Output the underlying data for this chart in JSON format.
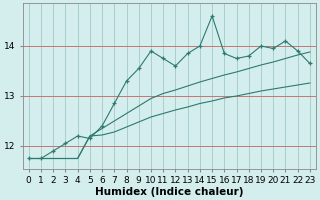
{
  "xlabel": "Humidex (Indice chaleur)",
  "bg_color": "#d4eeee",
  "grid_color": "#aacfcf",
  "line_color": "#2d7a6e",
  "x_values": [
    0,
    1,
    2,
    3,
    4,
    5,
    6,
    7,
    8,
    9,
    10,
    11,
    12,
    13,
    14,
    15,
    16,
    17,
    18,
    19,
    20,
    21,
    22,
    23
  ],
  "y_main": [
    11.75,
    11.75,
    11.9,
    12.05,
    12.2,
    12.15,
    12.4,
    12.85,
    13.3,
    13.55,
    13.9,
    13.75,
    13.6,
    13.85,
    14.0,
    14.6,
    13.85,
    13.75,
    13.8,
    14.0,
    13.95,
    14.1,
    13.9,
    13.65
  ],
  "y_upper": [
    11.75,
    11.75,
    11.75,
    11.75,
    11.75,
    12.2,
    12.35,
    12.5,
    12.65,
    12.8,
    12.95,
    13.05,
    13.12,
    13.2,
    13.28,
    13.35,
    13.42,
    13.48,
    13.55,
    13.62,
    13.68,
    13.75,
    13.82,
    13.88
  ],
  "y_lower": [
    11.75,
    11.75,
    11.75,
    11.75,
    11.75,
    12.2,
    12.22,
    12.28,
    12.38,
    12.48,
    12.58,
    12.65,
    12.72,
    12.78,
    12.85,
    12.9,
    12.96,
    13.0,
    13.05,
    13.1,
    13.14,
    13.18,
    13.22,
    13.26
  ],
  "ylim": [
    11.55,
    14.85
  ],
  "yticks": [
    12,
    13,
    14
  ],
  "xlim": [
    -0.5,
    23.5
  ],
  "xticks": [
    0,
    1,
    2,
    3,
    4,
    5,
    6,
    7,
    8,
    9,
    10,
    11,
    12,
    13,
    14,
    15,
    16,
    17,
    18,
    19,
    20,
    21,
    22,
    23
  ],
  "tick_fontsize": 6.5,
  "xlabel_fontsize": 7.5
}
